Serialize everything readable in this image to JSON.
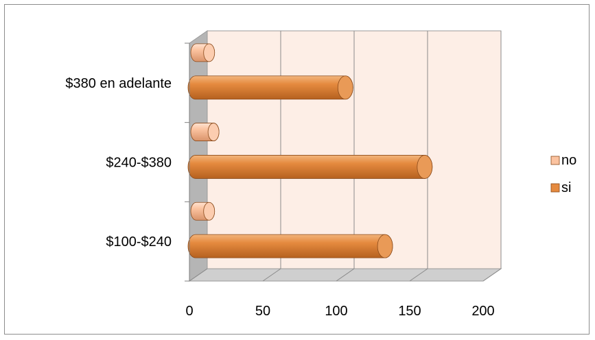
{
  "chart_data": {
    "type": "bar",
    "orientation": "horizontal",
    "style": "3d-cylinder",
    "title": "",
    "xlabel": "",
    "ylabel": "",
    "categories": [
      "$100-$240",
      "$240-$380",
      "$380 en adelante"
    ],
    "series": [
      {
        "name": "no",
        "values": [
          5,
          8,
          5
        ],
        "color": "#FBC3A0"
      },
      {
        "name": "si",
        "values": [
          129,
          156,
          102
        ],
        "color": "#E58A3F"
      }
    ],
    "xlim": [
      0,
      200
    ],
    "xticks": [
      "0",
      "50",
      "100",
      "150",
      "200"
    ],
    "grid": true,
    "legend_position": "right",
    "colors": {
      "wall": "#FDEEE6",
      "floor": "#CFCFCF",
      "side_wall": "#B5B5B5",
      "grid": "#8A8A8A",
      "frame": "#8C8C8C"
    }
  }
}
